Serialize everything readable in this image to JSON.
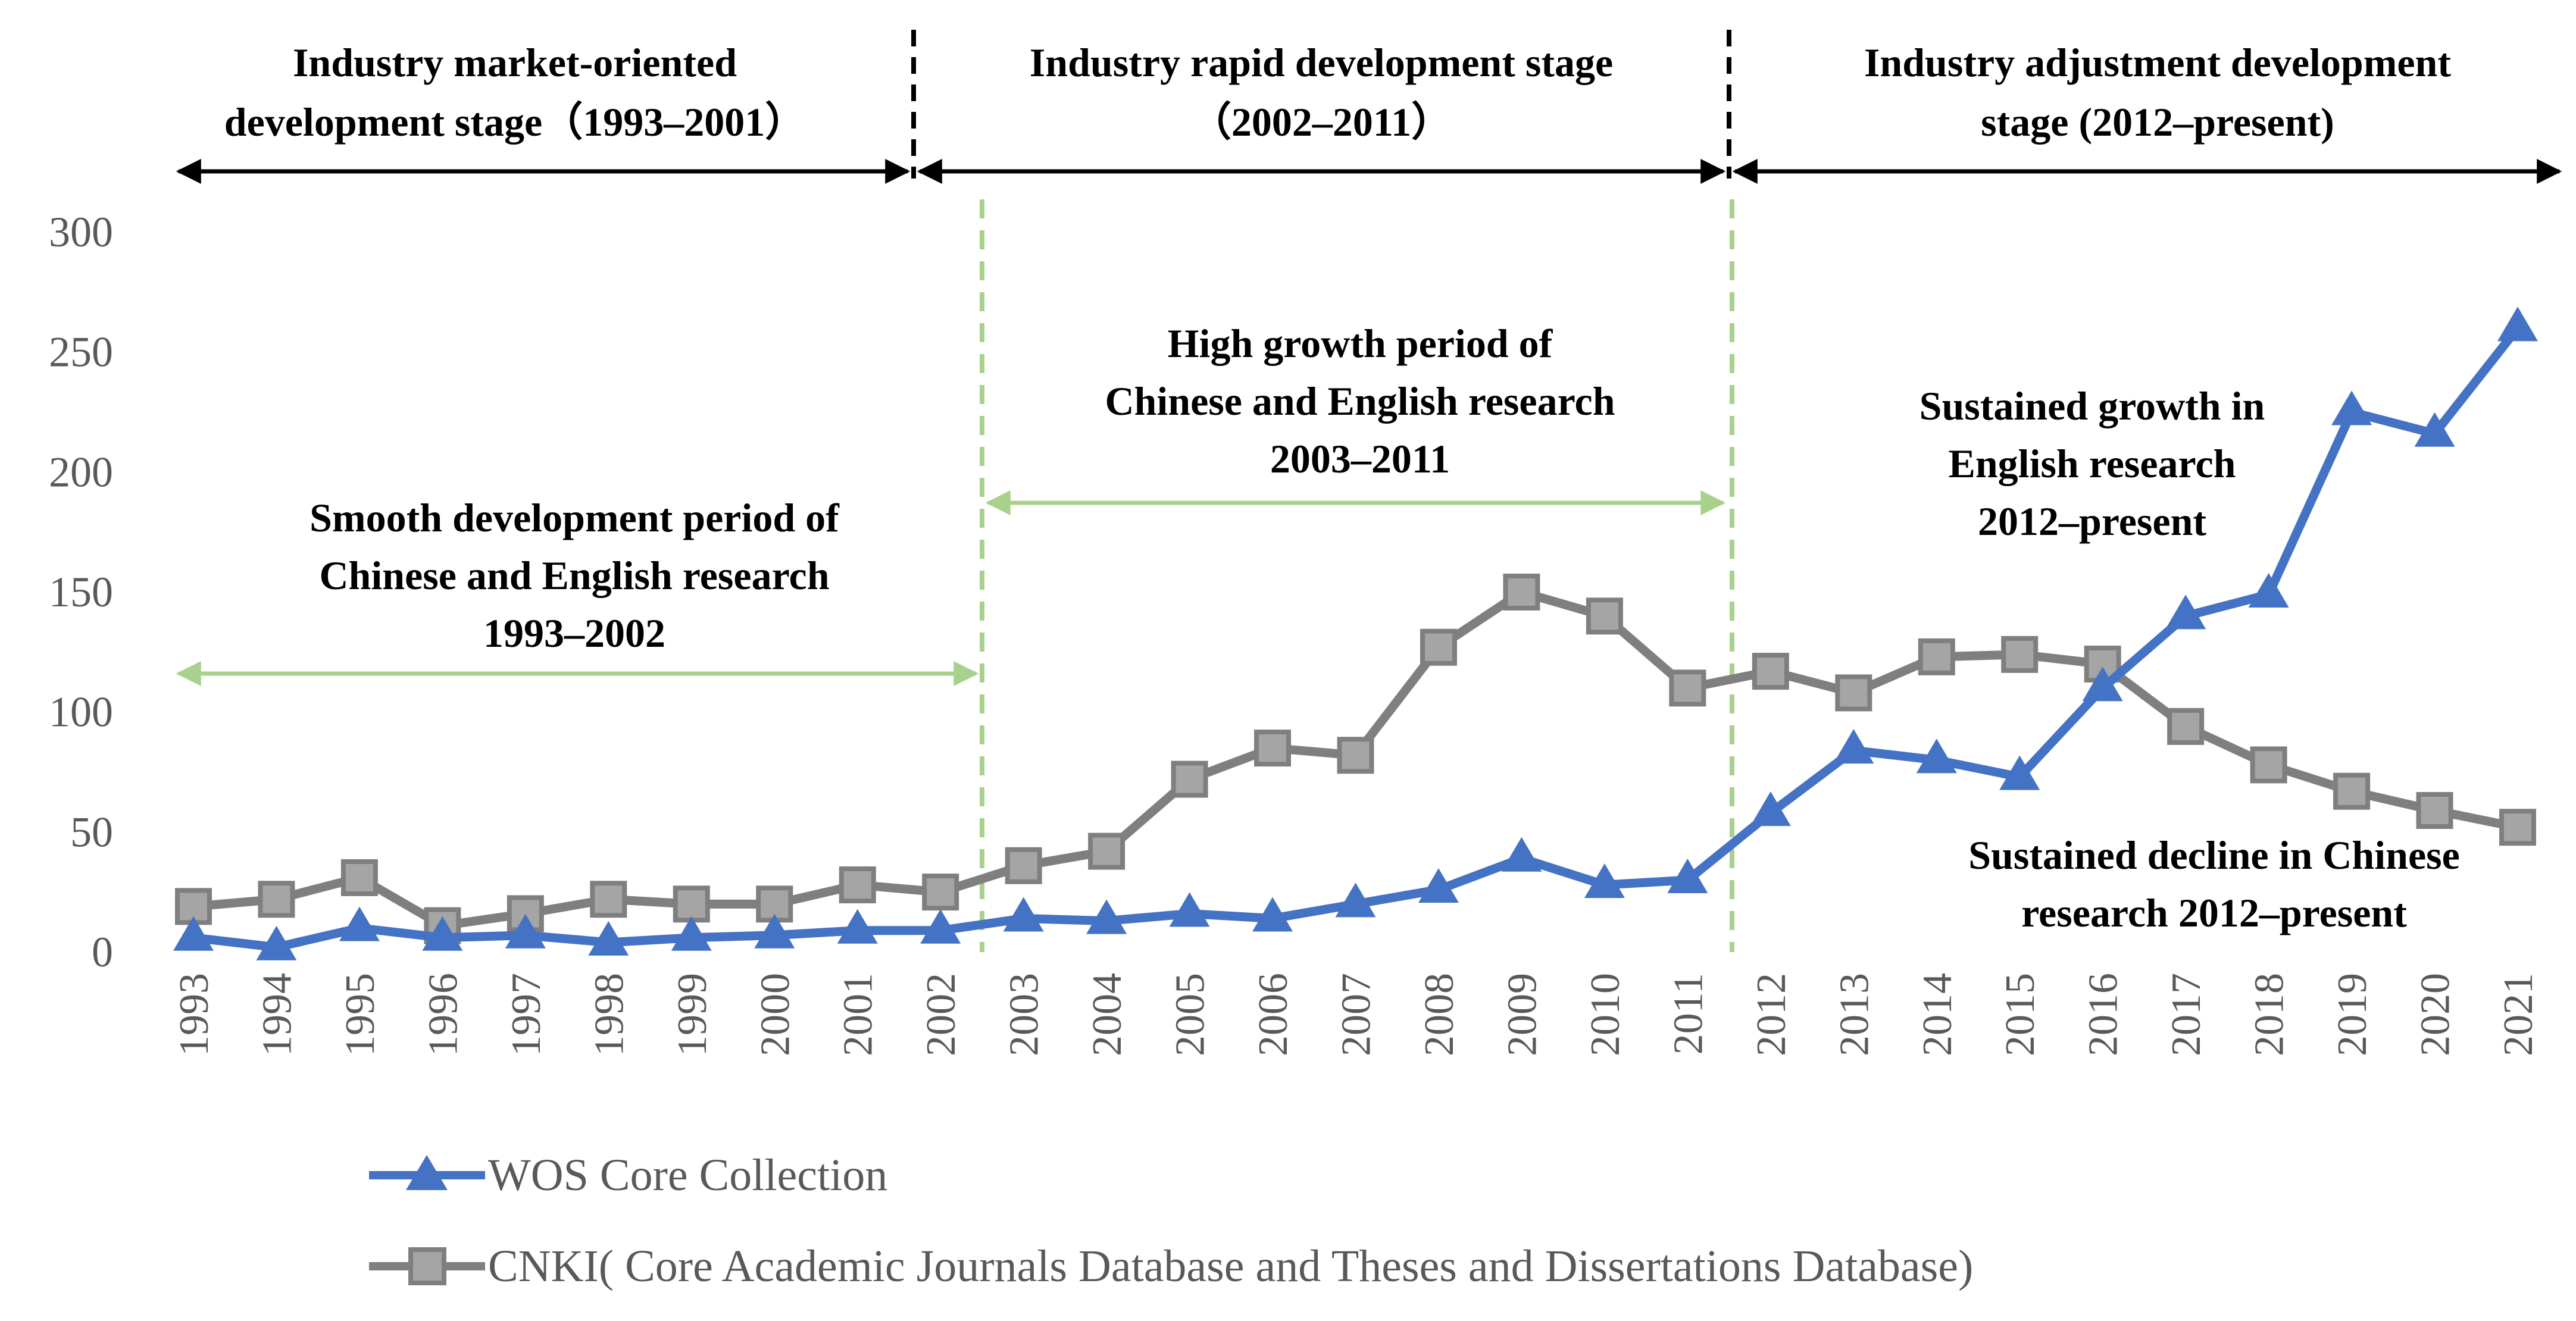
{
  "chart_data": {
    "type": "line",
    "title": "",
    "xlabel": "",
    "ylabel": "",
    "ylim": [
      0,
      300
    ],
    "yticks": [
      0,
      50,
      100,
      150,
      200,
      250,
      300
    ],
    "grid": false,
    "legend_position": "bottom-left",
    "categories": [
      "1993",
      "1994",
      "1995",
      "1996",
      "1997",
      "1998",
      "1999",
      "2000",
      "2001",
      "2002",
      "2003",
      "2004",
      "2005",
      "2006",
      "2007",
      "2008",
      "2009",
      "2010",
      "2011",
      "2012",
      "2013",
      "2014",
      "2015",
      "2016",
      "2017",
      "2018",
      "2019",
      "2020",
      "2021"
    ],
    "series": [
      {
        "name": "WOS Core Collection",
        "color": "#4472C4",
        "marker": "triangle",
        "values": [
          6,
          2,
          10,
          6,
          7,
          4,
          6,
          7,
          9,
          9,
          14,
          13,
          16,
          14,
          20,
          26,
          39,
          28,
          30,
          58,
          84,
          80,
          73,
          110,
          140,
          149,
          225,
          216,
          260
        ]
      },
      {
        "name": "CNKI( Core Academic Journals Database and Theses and Dissertations Database)",
        "color": "#7F7F7F",
        "marker": "square",
        "values": [
          19,
          22,
          31,
          11,
          16,
          22,
          20,
          20,
          28,
          25,
          36,
          42,
          72,
          85,
          82,
          127,
          150,
          140,
          110,
          117,
          108,
          123,
          124,
          120,
          94,
          78,
          67,
          59,
          52
        ]
      }
    ],
    "stages": [
      {
        "line1": "Industry market-oriented",
        "line2": "development stage（1993–2001）",
        "from": "1993",
        "to": "2001"
      },
      {
        "line1": "Industry rapid development stage",
        "line2": "（2002–2011）",
        "from": "2002",
        "to": "2011"
      },
      {
        "line1": "Industry adjustment development",
        "line2": "stage (2012–present)",
        "from": "2012",
        "to": "2021"
      }
    ],
    "periods": [
      {
        "lines": [
          "Smooth development period of",
          "Chinese and English research",
          "1993–2002"
        ],
        "from": "1993",
        "to": "2002"
      },
      {
        "lines": [
          "High growth period of",
          "Chinese and English research",
          "2003–2011"
        ],
        "from": "2003",
        "to": "2011"
      }
    ],
    "annotations": [
      {
        "lines": [
          "Sustained growth in",
          "English research",
          "2012–present"
        ]
      },
      {
        "lines": [
          "Sustained decline in Chinese",
          "research 2012–present"
        ]
      }
    ]
  }
}
